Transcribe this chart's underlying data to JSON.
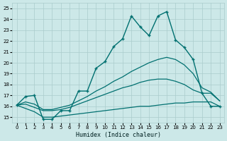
{
  "xlabel": "Humidex (Indice chaleur)",
  "background_color": "#cce8e8",
  "grid_color": "#aacccc",
  "line_color": "#007070",
  "xlim": [
    -0.5,
    23.5
  ],
  "ylim": [
    14.5,
    25.5
  ],
  "xticks": [
    0,
    1,
    2,
    3,
    4,
    5,
    6,
    7,
    8,
    9,
    10,
    11,
    12,
    13,
    14,
    15,
    16,
    17,
    18,
    19,
    20,
    21,
    22,
    23
  ],
  "yticks": [
    15,
    16,
    17,
    18,
    19,
    20,
    21,
    22,
    23,
    24,
    25
  ],
  "series": [
    {
      "x": [
        0,
        1,
        2,
        3,
        4,
        5,
        6,
        7,
        8,
        9,
        10,
        11,
        12,
        13,
        14,
        15,
        16,
        17,
        18,
        19,
        20,
        21,
        22,
        23
      ],
      "y": [
        16.1,
        16.9,
        17.0,
        14.8,
        14.8,
        15.6,
        15.6,
        17.4,
        17.4,
        19.5,
        20.1,
        21.5,
        22.2,
        24.3,
        23.3,
        22.5,
        24.3,
        24.7,
        22.1,
        21.4,
        20.3,
        17.2,
        16.0,
        16.0
      ],
      "marker": "+",
      "markersize": 3.5,
      "linewidth": 1.0,
      "zorder": 5
    },
    {
      "x": [
        0,
        1,
        2,
        3,
        4,
        5,
        6,
        7,
        8,
        9,
        10,
        11,
        12,
        13,
        14,
        15,
        16,
        17,
        18,
        19,
        20,
        21,
        22,
        23
      ],
      "y": [
        16.1,
        16.4,
        16.2,
        15.7,
        15.7,
        15.9,
        16.1,
        16.5,
        16.9,
        17.4,
        17.8,
        18.3,
        18.7,
        19.2,
        19.6,
        20.0,
        20.3,
        20.5,
        20.3,
        19.8,
        19.0,
        17.7,
        17.3,
        16.5
      ],
      "marker": null,
      "markersize": 0,
      "linewidth": 0.9,
      "zorder": 3
    },
    {
      "x": [
        0,
        1,
        2,
        3,
        4,
        5,
        6,
        7,
        8,
        9,
        10,
        11,
        12,
        13,
        14,
        15,
        16,
        17,
        18,
        19,
        20,
        21,
        22,
        23
      ],
      "y": [
        16.1,
        16.2,
        15.9,
        15.6,
        15.6,
        15.7,
        15.9,
        16.2,
        16.5,
        16.8,
        17.1,
        17.4,
        17.7,
        17.9,
        18.2,
        18.4,
        18.5,
        18.5,
        18.3,
        18.0,
        17.5,
        17.2,
        17.2,
        16.5
      ],
      "marker": null,
      "markersize": 0,
      "linewidth": 0.9,
      "zorder": 3
    },
    {
      "x": [
        0,
        1,
        2,
        3,
        4,
        5,
        6,
        7,
        8,
        9,
        10,
        11,
        12,
        13,
        14,
        15,
        16,
        17,
        18,
        19,
        20,
        21,
        22,
        23
      ],
      "y": [
        16.1,
        15.8,
        15.5,
        15.0,
        15.0,
        15.1,
        15.2,
        15.3,
        15.4,
        15.5,
        15.6,
        15.7,
        15.8,
        15.9,
        16.0,
        16.0,
        16.1,
        16.2,
        16.3,
        16.3,
        16.4,
        16.4,
        16.4,
        16.0
      ],
      "marker": null,
      "markersize": 0,
      "linewidth": 0.9,
      "zorder": 3
    }
  ]
}
